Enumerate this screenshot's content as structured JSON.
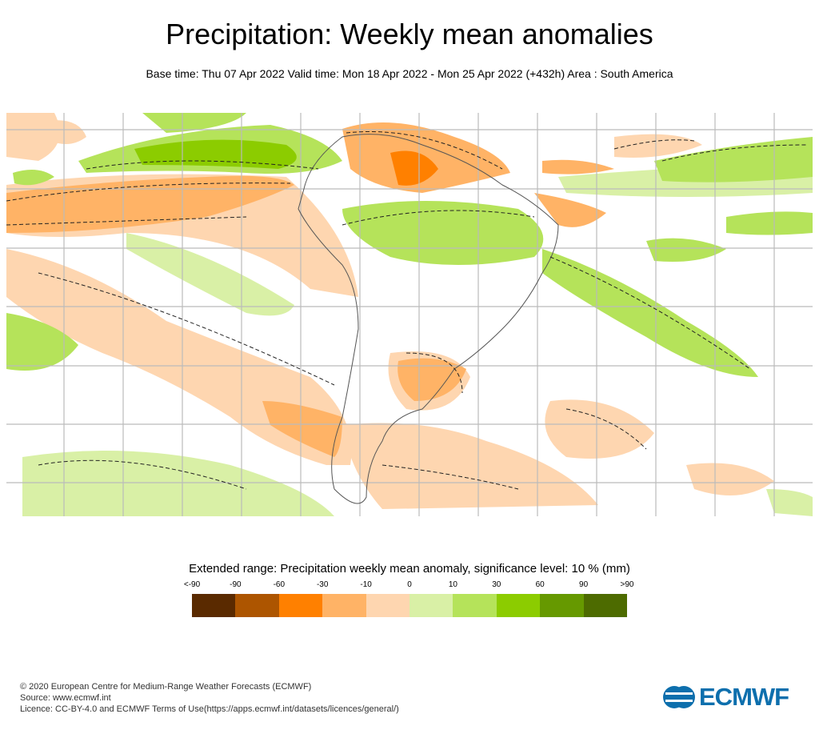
{
  "title": "Precipitation: Weekly mean anomalies",
  "subtitle": "Base time: Thu 07 Apr 2022 Valid time: Mon 18 Apr 2022 - Mon 25 Apr 2022 (+432h) Area : South America",
  "legend": {
    "title": "Extended range: Precipitation weekly mean anomaly, significance level: 10 % (mm)",
    "ticks": [
      "<-90",
      "-90",
      "-60",
      "-30",
      "-10",
      "0",
      "10",
      "30",
      "60",
      "90",
      ">90"
    ],
    "colors": [
      "#5a2a00",
      "#ad5500",
      "#ff8000",
      "#ffb366",
      "#fed6b0",
      "#d9f0a6",
      "#b5e35a",
      "#8ccc00",
      "#669900",
      "#4d6b00"
    ]
  },
  "footer": {
    "line1": "© 2020 European Centre for Medium-Range Weather Forecasts (ECMWF)",
    "line2": "Source: www.ecmwf.int",
    "line3": "Licence: CC-BY-4.0 and ECMWF Terms of Use(https://apps.ecmwf.int/datasets/licences/general/)"
  },
  "logo": {
    "text": "ECMWF"
  }
}
